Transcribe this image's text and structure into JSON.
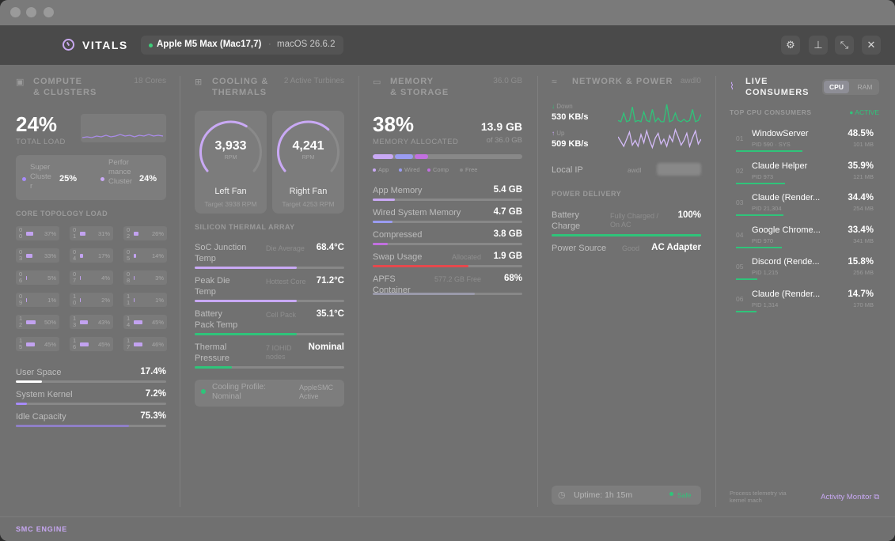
{
  "app": {
    "name": "VITALS",
    "device": "Apple M5 Max (Mac17,7)",
    "separator": "·",
    "os": "macOS 26.6.2"
  },
  "header_buttons": {
    "settings_icon": "gear-icon",
    "pin_icon": "pin-icon",
    "collapse_icon": "collapse-icon",
    "close_icon": "close-icon"
  },
  "compute": {
    "title_line1": "COMPUTE",
    "title_line2": "& CLUSTERS",
    "meta": "18 Cores",
    "total_value": "24%",
    "total_label": "TOTAL LOAD",
    "clusters": [
      {
        "l1": "Super",
        "l2": "Cluste",
        "l3": "r",
        "pct": "25%"
      },
      {
        "l1": "Perfor",
        "l2": "mance",
        "l3": "Cluster",
        "pct": "24%"
      }
    ],
    "topology_label": "CORE TOPOLOGY LOAD",
    "cores": [
      {
        "id1": "0",
        "id2": "0",
        "pct": "37%",
        "fill": 0.37
      },
      {
        "id1": "0",
        "id2": "1",
        "pct": "31%",
        "fill": 0.31
      },
      {
        "id1": "0",
        "id2": "2",
        "pct": "26%",
        "fill": 0.26
      },
      {
        "id1": "0",
        "id2": "3",
        "pct": "33%",
        "fill": 0.33
      },
      {
        "id1": "0",
        "id2": "4",
        "pct": "17%",
        "fill": 0.17
      },
      {
        "id1": "0",
        "id2": "5",
        "pct": "14%",
        "fill": 0.14
      },
      {
        "id1": "0",
        "id2": "6",
        "pct": "5%",
        "fill": 0.05
      },
      {
        "id1": "0",
        "id2": "7",
        "pct": "4%",
        "fill": 0.04
      },
      {
        "id1": "0",
        "id2": "8",
        "pct": "3%",
        "fill": 0.03
      },
      {
        "id1": "0",
        "id2": "9",
        "pct": "1%",
        "fill": 0.01
      },
      {
        "id1": "1",
        "id2": "0",
        "pct": "2%",
        "fill": 0.02
      },
      {
        "id1": "1",
        "id2": "1",
        "pct": "1%",
        "fill": 0.01
      },
      {
        "id1": "1",
        "id2": "2",
        "pct": "50%",
        "fill": 0.5
      },
      {
        "id1": "1",
        "id2": "3",
        "pct": "43%",
        "fill": 0.43
      },
      {
        "id1": "1",
        "id2": "4",
        "pct": "45%",
        "fill": 0.45
      },
      {
        "id1": "1",
        "id2": "5",
        "pct": "45%",
        "fill": 0.45
      },
      {
        "id1": "1",
        "id2": "6",
        "pct": "45%",
        "fill": 0.45
      },
      {
        "id1": "1",
        "id2": "7",
        "pct": "46%",
        "fill": 0.46
      }
    ],
    "rows": [
      {
        "label": "User Space",
        "value": "17.4%",
        "fill": 0.174,
        "color": "#ffffff"
      },
      {
        "label": "System Kernel",
        "value": "7.2%",
        "fill": 0.072,
        "color": "#a78bfa"
      },
      {
        "label": "Idle Capacity",
        "value": "75.3%",
        "fill": 0.753,
        "color": "#8f7fc7"
      }
    ]
  },
  "cooling": {
    "title_line1": "COOLING &",
    "title_line2": "THERMALS",
    "meta": "2 Active Turbines",
    "fans": [
      {
        "value": "3,933",
        "unit": "RPM",
        "name": "Left Fan",
        "target": "Target 3938 RPM",
        "fill": 0.62
      },
      {
        "value": "4,241",
        "unit": "RPM",
        "name": "Right Fan",
        "target": "Target 4253 RPM",
        "fill": 0.66
      }
    ],
    "array_label": "SILICON THERMAL ARRAY",
    "rows": [
      {
        "l1": "SoC Junction",
        "l2": "Temp",
        "mid1": "Die Average",
        "mid2": "",
        "value": "68.4°C",
        "fill": 0.68,
        "color": "#c9a9f5"
      },
      {
        "l1": "Peak Die",
        "l2": "Temp",
        "mid1": "Hottest Core",
        "mid2": "",
        "value": "71.2°C",
        "fill": 0.68,
        "color": "#c9a9f5"
      },
      {
        "l1": "Battery",
        "l2": "Pack Temp",
        "mid1": "Cell Pack",
        "mid2": "",
        "value": "35.1°C",
        "fill": 0.68,
        "color": "#2fc47a"
      },
      {
        "l1": "Thermal",
        "l2": "Pressure",
        "mid1": "7 IOHID",
        "mid2": "nodes",
        "value": "Nominal",
        "fill": 0.25,
        "color": "#2fc47a"
      }
    ],
    "profile": {
      "l1": "Cooling Profile:",
      "l2": "Nominal",
      "r1": "AppleSMC",
      "r2": "Active"
    }
  },
  "memory": {
    "title_line1": "MEMORY",
    "title_line2": "& STORAGE",
    "meta": "36.0 GB",
    "alloc_value": "38%",
    "alloc_label": "MEMORY ALLOCATED",
    "used": "13.9 GB",
    "of_total": "of 36.0 GB",
    "segments": [
      {
        "fill": 0.15,
        "color": "#c9a9f5"
      },
      {
        "fill": 0.13,
        "color": "#9a9cf2"
      },
      {
        "fill": 0.1,
        "color": "#c270e0"
      }
    ],
    "legend": [
      {
        "label": "App",
        "color": "#c9a9f5"
      },
      {
        "label": "Wired",
        "color": "#9a9cf2"
      },
      {
        "label": "Comp",
        "color": "#c270e0"
      },
      {
        "label": "Free",
        "color": "#8a8a8a"
      }
    ],
    "rows": [
      {
        "l1": "App Memory",
        "l2": "",
        "mid": "",
        "value": "5.4 GB",
        "fill": 0.15,
        "color": "#c9a9f5"
      },
      {
        "l1": "Wired System Memory",
        "l2": "",
        "mid": "",
        "value": "4.7 GB",
        "fill": 0.13,
        "color": "#9a9cf2"
      },
      {
        "l1": "Compressed",
        "l2": "",
        "mid": "",
        "value": "3.8 GB",
        "fill": 0.1,
        "color": "#c270e0"
      },
      {
        "l1": "Swap Usage",
        "l2": "",
        "mid": "Allocated",
        "value": "1.9 GB",
        "fill": 0.64,
        "color": "#e5484d"
      },
      {
        "l1": "APFS",
        "l2": "Container",
        "mid": "577.2 GB Free",
        "value": "68%",
        "fill": 0.68,
        "color": "#9a9aaa"
      }
    ]
  },
  "network": {
    "title": "NETWORK & POWER",
    "meta": "awdl0",
    "down_label": "Down",
    "down_value": "530 KB/s",
    "up_label": "Up",
    "up_value": "509 KB/s",
    "local_ip_label": "Local IP",
    "local_ip_iface": "awdl",
    "power_label": "POWER DELIVERY",
    "battery": {
      "l1": "Battery",
      "l2": "Charge",
      "mid1": "Fully Charged /",
      "mid2": "On AC",
      "value": "100%",
      "fill": 1.0
    },
    "source": {
      "label": "Power Source",
      "mid": "Good",
      "value": "AC Adapter"
    },
    "uptime": "Uptime: 1h 15m",
    "uptime_status": "Safe",
    "down_series": [
      3,
      2,
      9,
      2,
      3,
      14,
      2,
      3,
      2,
      10,
      3,
      2,
      12,
      2,
      5,
      2,
      2,
      16,
      2,
      3,
      9,
      3,
      2,
      4,
      2,
      3,
      12,
      2,
      3,
      8
    ],
    "up_series": [
      12,
      8,
      4,
      10,
      16,
      5,
      9,
      4,
      14,
      7,
      17,
      9,
      3,
      11,
      15,
      6,
      10,
      4,
      13,
      8,
      18,
      12,
      5,
      9,
      15,
      4,
      11,
      17,
      6,
      10
    ]
  },
  "consumers": {
    "title_line1": "LIVE",
    "title_line2": "CONSUMERS",
    "toggle_cpu": "CPU",
    "toggle_ram": "RAM",
    "top_label": "TOP CPU CONSUMERS",
    "status": "ACTIVE",
    "items": [
      {
        "rank": "01",
        "name": "WindowServer",
        "pid": "PID 590 · SYS",
        "pct": "48.5%",
        "mem": "101 MB",
        "fill": 0.485
      },
      {
        "rank": "02",
        "name": "Claude Helper",
        "pid": "PID 973",
        "pct": "35.9%",
        "mem": "121 MB",
        "fill": 0.359
      },
      {
        "rank": "03",
        "name": "Claude (Render...",
        "pid": "PID 21,304",
        "pct": "34.4%",
        "mem": "254 MB",
        "fill": 0.344
      },
      {
        "rank": "04",
        "name": "Google Chrome...",
        "pid": "PID 970",
        "pct": "33.4%",
        "mem": "341 MB",
        "fill": 0.334
      },
      {
        "rank": "05",
        "name": "Discord (Rende...",
        "pid": "PID 1,215",
        "pct": "15.8%",
        "mem": "256 MB",
        "fill": 0.158
      },
      {
        "rank": "06",
        "name": "Claude (Render...",
        "pid": "PID 1,314",
        "pct": "14.7%",
        "mem": "170 MB",
        "fill": 0.147
      }
    ],
    "note_l1": "Process telemetry via",
    "note_l2": "kernel mach",
    "activity_link": "Activity Monitor"
  },
  "footer": {
    "label": "SMC ENGINE"
  },
  "colors": {
    "accent": "#c9a9f5",
    "green": "#2fc47a",
    "red": "#e5484d"
  }
}
